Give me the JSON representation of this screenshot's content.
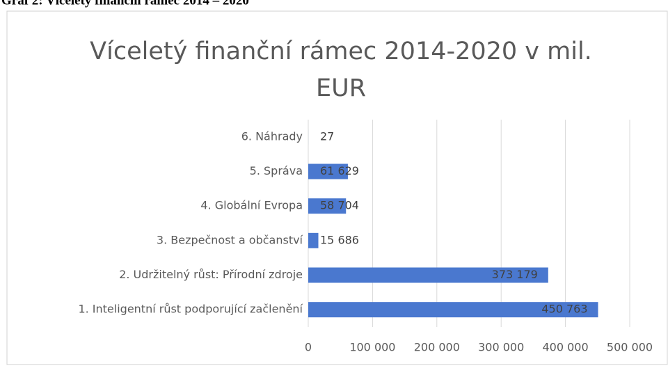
{
  "caption": "Graf 2: Víceletý finanční rámec 2014 – 2020",
  "chart_data": {
    "type": "barh",
    "title": "Víceletý finanční rámec 2014-2020 v mil. EUR",
    "categories": [
      "6. Náhrady",
      "5. Správa",
      "4. Globální Evropa",
      "3. Bezpečnost a občanství",
      "2. Udržitelný růst: Přírodní zdroje",
      "1. Inteligentní růst podporující začlenění"
    ],
    "values": [
      27,
      61629,
      58704,
      15686,
      373179,
      450763
    ],
    "value_labels": [
      "27",
      "61 629",
      "58 704",
      "15 686",
      "373 179",
      "450 763"
    ],
    "color": "#4a78cf",
    "xlim": [
      0,
      500000
    ],
    "xticks": [
      0,
      {
        "value": 100000,
        "label": "100 000"
      },
      {
        "value": 200000,
        "label": "200 000"
      },
      {
        "value": 300000,
        "label": "300 000"
      },
      {
        "value": 400000,
        "label": "400 000"
      },
      {
        "value": 500000,
        "label": "500 000"
      }
    ],
    "grid": true
  }
}
